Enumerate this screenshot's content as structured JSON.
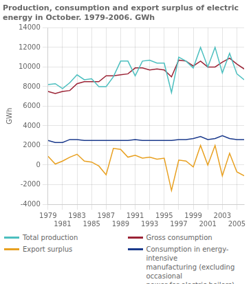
{
  "chart_data": {
    "type": "line",
    "title": "Production, consumption and export surplus of electric\nenergy in October. 1979-2006. GWh",
    "y_label": "GWh",
    "x": [
      1979,
      1980,
      1981,
      1982,
      1983,
      1984,
      1985,
      1986,
      1987,
      1988,
      1989,
      1990,
      1991,
      1992,
      1993,
      1994,
      1995,
      1996,
      1997,
      1998,
      1999,
      2000,
      2001,
      2002,
      2003,
      2004,
      2005,
      2006
    ],
    "series": [
      {
        "name": "Total production",
        "color": "#4CBFBF",
        "values": [
          8200,
          8300,
          7800,
          8400,
          9200,
          8700,
          8800,
          8000,
          8000,
          9000,
          10600,
          10600,
          9100,
          10600,
          10700,
          10400,
          10400,
          7400,
          11000,
          10600,
          9900,
          12000,
          10000,
          12000,
          9400,
          11400,
          9300,
          8700
        ]
      },
      {
        "name": "Gross consumption",
        "color": "#9B2335",
        "values": [
          7500,
          7300,
          7500,
          7600,
          8300,
          8500,
          8500,
          8500,
          9100,
          9100,
          9200,
          9300,
          9900,
          9900,
          9700,
          9800,
          9700,
          9000,
          10700,
          10600,
          10100,
          10600,
          10000,
          10000,
          10500,
          10900,
          10300,
          9800
        ]
      },
      {
        "name": "Export surplus",
        "color": "#E8A020",
        "values": [
          900,
          100,
          400,
          800,
          1100,
          400,
          300,
          -100,
          -1000,
          1700,
          1600,
          800,
          1000,
          700,
          800,
          600,
          700,
          -2600,
          500,
          400,
          -200,
          2000,
          0,
          2000,
          -1100,
          1200,
          -700,
          -1100
        ]
      },
      {
        "name": "Consumption in energy-intensive\nmanufacturing (excluding occasional\npower for electric boilers)",
        "color": "#1B3A8C",
        "values": [
          2500,
          2300,
          2300,
          2600,
          2600,
          2500,
          2500,
          2500,
          2500,
          2500,
          2500,
          2500,
          2600,
          2500,
          2500,
          2500,
          2500,
          2500,
          2600,
          2600,
          2700,
          2900,
          2600,
          2700,
          3000,
          2700,
          2600,
          2600
        ]
      }
    ],
    "xlim": [
      1979,
      2006
    ],
    "xticks": [
      1979,
      1981,
      1983,
      1985,
      1987,
      1989,
      1991,
      1993,
      1995,
      1997,
      1999,
      2001,
      2003,
      2005
    ],
    "ylim": [
      -4000,
      14000
    ],
    "yticks": [
      -4000,
      -2000,
      0,
      2000,
      4000,
      6000,
      8000,
      10000,
      12000,
      14000
    ],
    "grid": true,
    "legend": "bottom"
  }
}
